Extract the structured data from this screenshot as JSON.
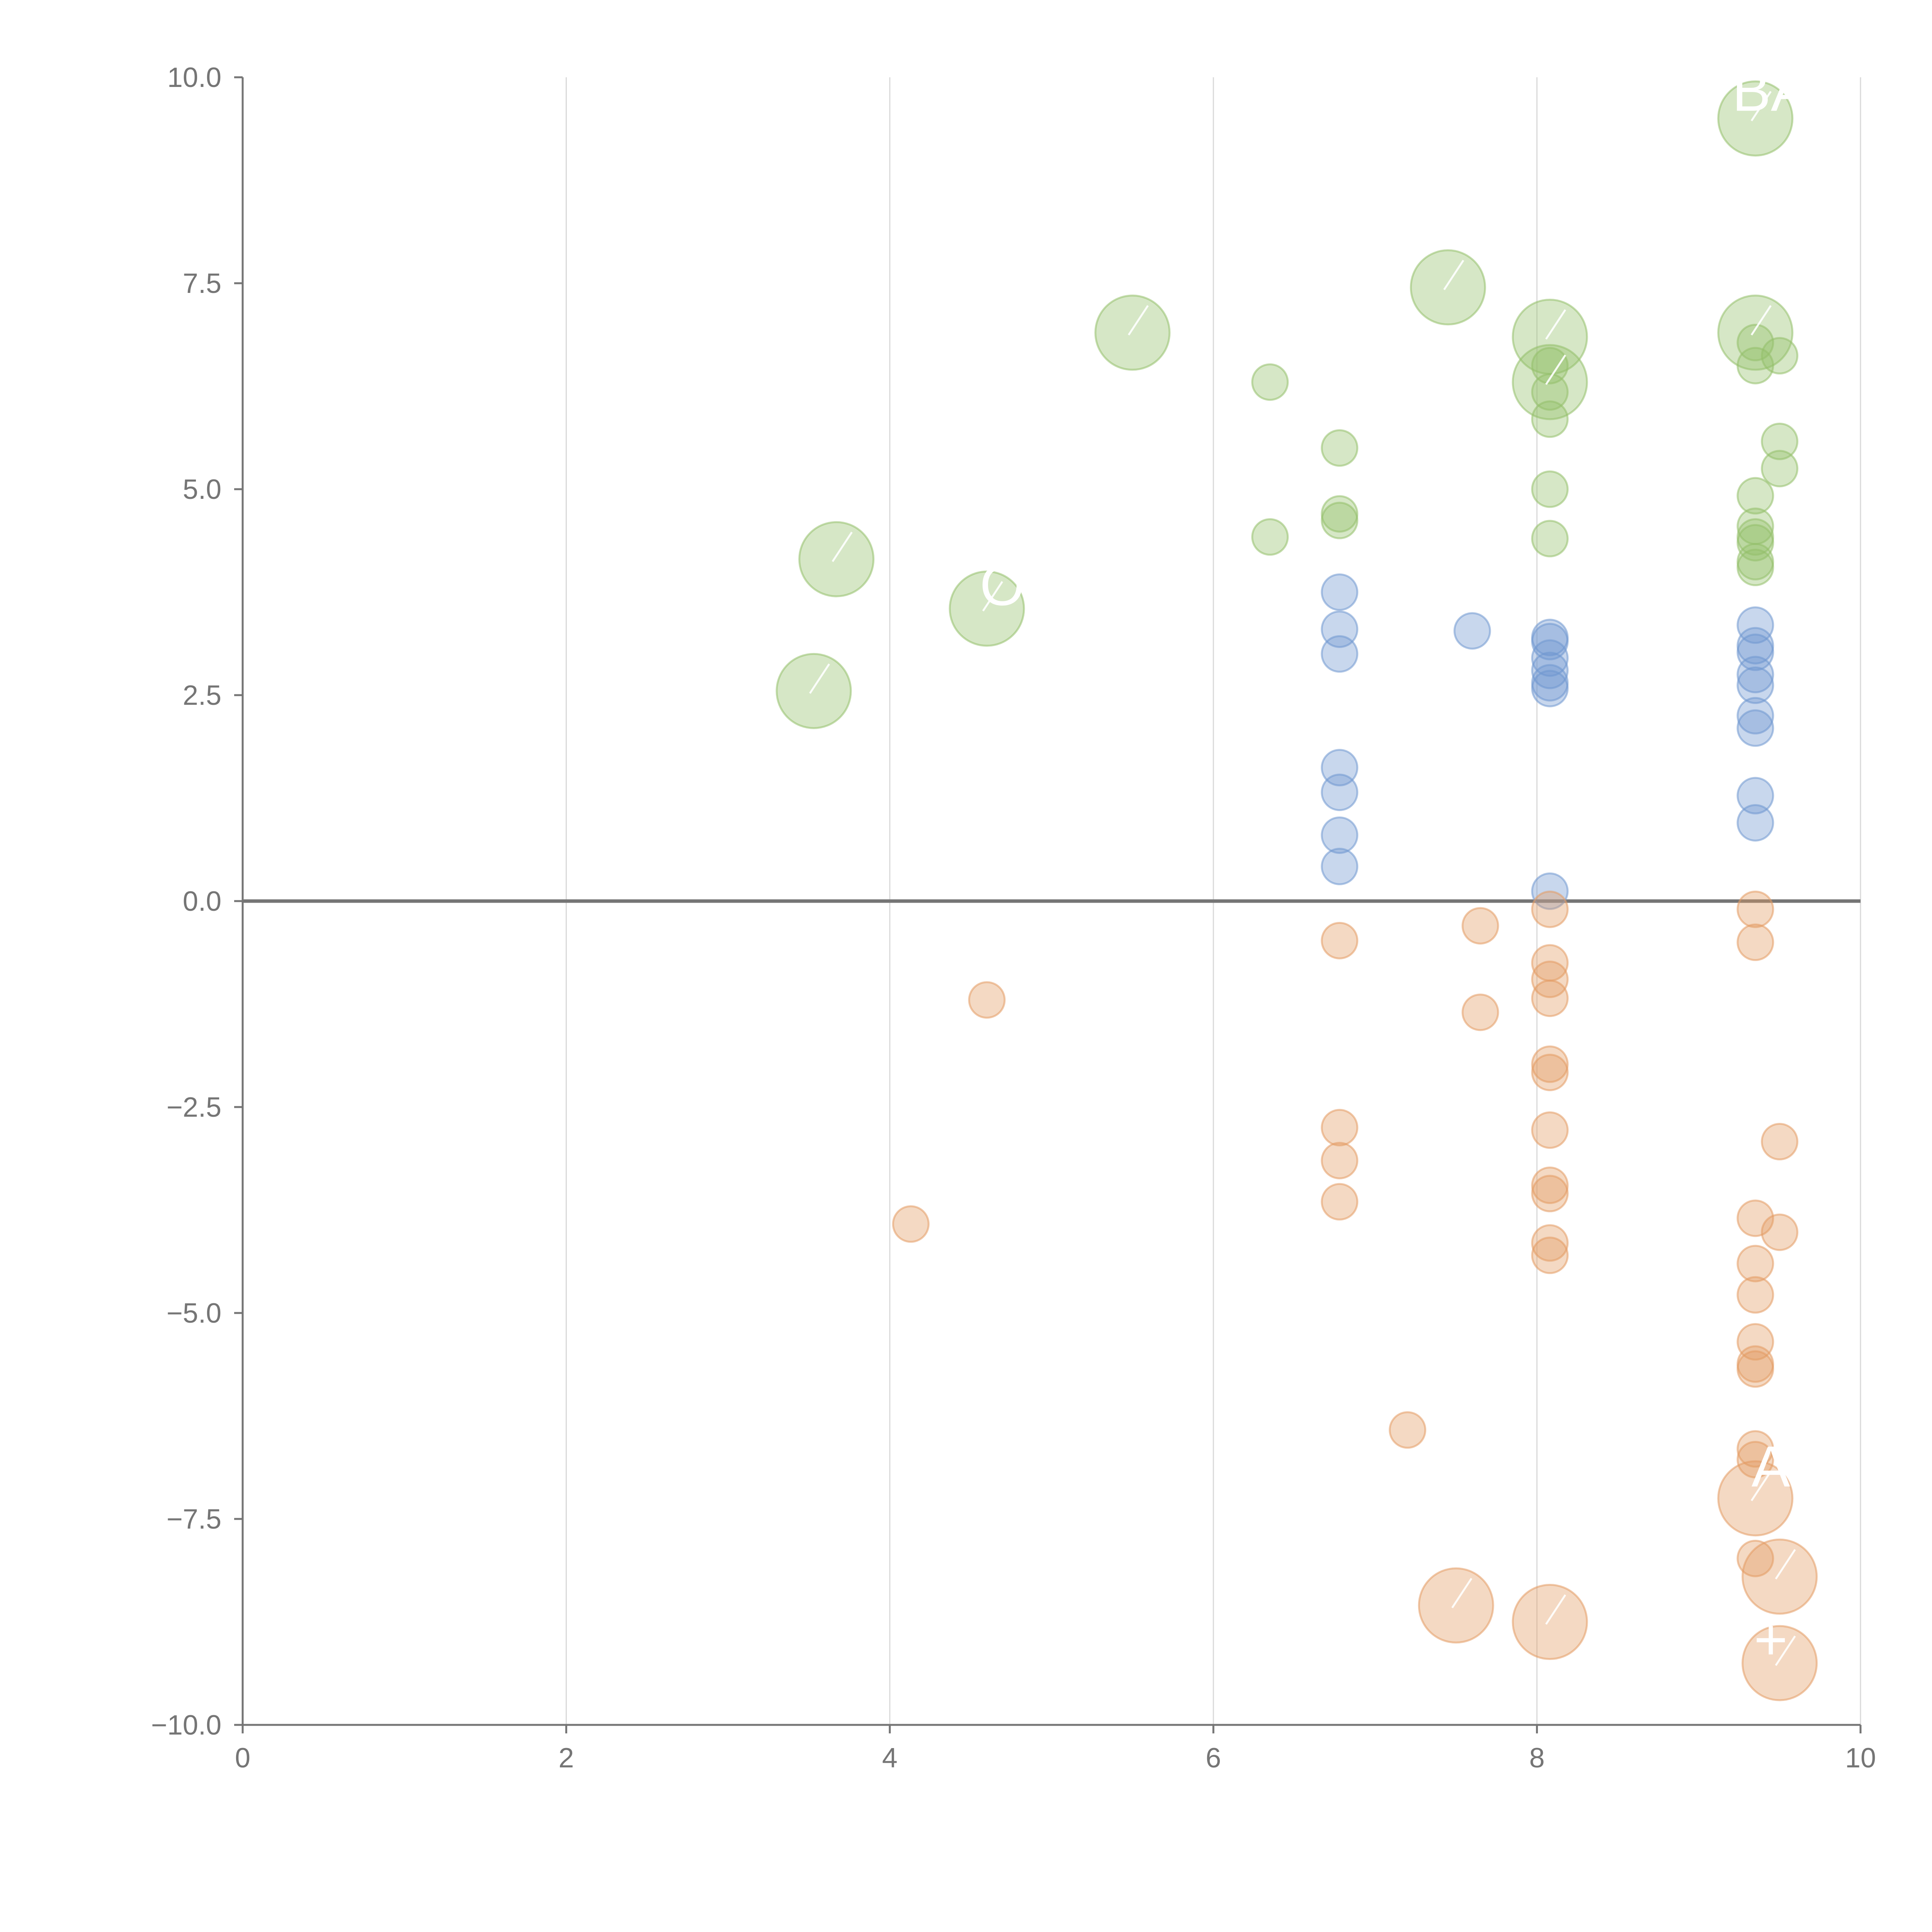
{
  "chart_data": {
    "type": "scatter",
    "title": "",
    "xlabel": "",
    "ylabel": "",
    "xlim": [
      0,
      10
    ],
    "ylim": [
      -10,
      10
    ],
    "grid": "vertical",
    "x_ticks": [
      "0",
      "2",
      "4",
      "6",
      "8",
      "10"
    ],
    "x_tick_values": [
      0,
      2,
      4,
      6,
      8,
      10
    ],
    "y_ticks": [
      "10.0",
      "7.5",
      "5.0",
      "2.5",
      "0.0",
      "−2.5",
      "−5.0",
      "−7.5",
      "−10.0"
    ],
    "y_tick_values": [
      10,
      7.5,
      5,
      2.5,
      0,
      -2.5,
      -5,
      -7.5,
      -10
    ],
    "reference_line_y": 0,
    "annotations": [
      {
        "text": "BA",
        "x": 9.35,
        "y": 9.5
      },
      {
        "text": "A",
        "x": 9.35,
        "y": -7.2
      },
      {
        "text": "+",
        "x": 9.35,
        "y": -9.3
      },
      {
        "text": "O",
        "x": 4.6,
        "y": 3.5
      }
    ],
    "series": [
      {
        "name": "green",
        "color": "#93c06a",
        "points": [
          {
            "x": 9.35,
            "y": 9.5,
            "size": 3
          },
          {
            "x": 7.45,
            "y": 7.45,
            "size": 3
          },
          {
            "x": 8.08,
            "y": 6.85,
            "size": 3
          },
          {
            "x": 9.35,
            "y": 6.9,
            "size": 3
          },
          {
            "x": 5.5,
            "y": 6.9,
            "size": 3
          },
          {
            "x": 8.08,
            "y": 6.3,
            "size": 3
          },
          {
            "x": 3.67,
            "y": 4.15,
            "size": 3
          },
          {
            "x": 4.6,
            "y": 3.55,
            "size": 3
          },
          {
            "x": 3.53,
            "y": 2.55,
            "size": 3
          },
          {
            "x": 6.35,
            "y": 6.3,
            "size": 1
          },
          {
            "x": 6.78,
            "y": 5.5,
            "size": 1
          },
          {
            "x": 6.78,
            "y": 4.7,
            "size": 1
          },
          {
            "x": 6.78,
            "y": 4.62,
            "size": 1
          },
          {
            "x": 6.35,
            "y": 4.42,
            "size": 1
          },
          {
            "x": 8.08,
            "y": 6.5,
            "size": 1
          },
          {
            "x": 8.08,
            "y": 6.18,
            "size": 1
          },
          {
            "x": 8.08,
            "y": 5.85,
            "size": 1
          },
          {
            "x": 8.08,
            "y": 5.0,
            "size": 1
          },
          {
            "x": 8.08,
            "y": 4.4,
            "size": 1
          },
          {
            "x": 9.35,
            "y": 6.78,
            "size": 1
          },
          {
            "x": 9.35,
            "y": 6.5,
            "size": 1
          },
          {
            "x": 9.5,
            "y": 6.62,
            "size": 1
          },
          {
            "x": 9.5,
            "y": 5.58,
            "size": 1
          },
          {
            "x": 9.5,
            "y": 5.25,
            "size": 1
          },
          {
            "x": 9.35,
            "y": 4.92,
            "size": 1
          },
          {
            "x": 9.35,
            "y": 4.55,
            "size": 1
          },
          {
            "x": 9.35,
            "y": 4.42,
            "size": 1
          },
          {
            "x": 9.35,
            "y": 4.35,
            "size": 1
          },
          {
            "x": 9.35,
            "y": 4.12,
            "size": 1
          },
          {
            "x": 9.35,
            "y": 4.05,
            "size": 1
          }
        ]
      },
      {
        "name": "blue",
        "color": "#6f97cf",
        "points": [
          {
            "x": 6.78,
            "y": 3.75,
            "size": 1
          },
          {
            "x": 6.78,
            "y": 3.3,
            "size": 1
          },
          {
            "x": 6.78,
            "y": 3.0,
            "size": 1
          },
          {
            "x": 6.78,
            "y": 1.62,
            "size": 1
          },
          {
            "x": 6.78,
            "y": 1.32,
            "size": 1
          },
          {
            "x": 6.78,
            "y": 0.8,
            "size": 1
          },
          {
            "x": 6.78,
            "y": 0.42,
            "size": 1
          },
          {
            "x": 7.6,
            "y": 3.28,
            "size": 1
          },
          {
            "x": 8.08,
            "y": 3.2,
            "size": 1
          },
          {
            "x": 8.08,
            "y": 3.15,
            "size": 1
          },
          {
            "x": 8.08,
            "y": 2.95,
            "size": 1
          },
          {
            "x": 8.08,
            "y": 2.8,
            "size": 1
          },
          {
            "x": 8.08,
            "y": 2.65,
            "size": 1
          },
          {
            "x": 8.08,
            "y": 2.58,
            "size": 1
          },
          {
            "x": 8.08,
            "y": 0.12,
            "size": 1
          },
          {
            "x": 9.35,
            "y": 3.35,
            "size": 1
          },
          {
            "x": 9.35,
            "y": 3.1,
            "size": 1
          },
          {
            "x": 9.35,
            "y": 3.02,
            "size": 1
          },
          {
            "x": 9.35,
            "y": 2.75,
            "size": 1
          },
          {
            "x": 9.35,
            "y": 2.62,
            "size": 1
          },
          {
            "x": 9.35,
            "y": 2.25,
            "size": 1
          },
          {
            "x": 9.35,
            "y": 2.1,
            "size": 1
          },
          {
            "x": 9.35,
            "y": 1.28,
            "size": 1
          },
          {
            "x": 9.35,
            "y": 0.95,
            "size": 1
          }
        ]
      },
      {
        "name": "orange",
        "color": "#e39a62",
        "points": [
          {
            "x": 6.78,
            "y": -0.48,
            "size": 1
          },
          {
            "x": 6.78,
            "y": -2.75,
            "size": 1
          },
          {
            "x": 6.78,
            "y": -3.15,
            "size": 1
          },
          {
            "x": 6.78,
            "y": -3.65,
            "size": 1
          },
          {
            "x": 4.6,
            "y": -1.2,
            "size": 1
          },
          {
            "x": 4.13,
            "y": -3.92,
            "size": 1
          },
          {
            "x": 7.65,
            "y": -0.3,
            "size": 1
          },
          {
            "x": 7.65,
            "y": -1.35,
            "size": 1
          },
          {
            "x": 7.2,
            "y": -6.42,
            "size": 1
          },
          {
            "x": 8.08,
            "y": -0.1,
            "size": 1
          },
          {
            "x": 8.08,
            "y": -0.75,
            "size": 1
          },
          {
            "x": 8.08,
            "y": -0.95,
            "size": 1
          },
          {
            "x": 8.08,
            "y": -1.18,
            "size": 1
          },
          {
            "x": 8.08,
            "y": -1.98,
            "size": 1
          },
          {
            "x": 8.08,
            "y": -2.08,
            "size": 1
          },
          {
            "x": 8.08,
            "y": -2.78,
            "size": 1
          },
          {
            "x": 8.08,
            "y": -3.45,
            "size": 1
          },
          {
            "x": 8.08,
            "y": -3.55,
            "size": 1
          },
          {
            "x": 8.08,
            "y": -4.15,
            "size": 1
          },
          {
            "x": 8.08,
            "y": -4.3,
            "size": 1
          },
          {
            "x": 9.35,
            "y": -0.1,
            "size": 1
          },
          {
            "x": 9.35,
            "y": -0.5,
            "size": 1
          },
          {
            "x": 9.5,
            "y": -2.92,
            "size": 1
          },
          {
            "x": 9.35,
            "y": -3.85,
            "size": 1
          },
          {
            "x": 9.5,
            "y": -4.02,
            "size": 1
          },
          {
            "x": 9.35,
            "y": -4.4,
            "size": 1
          },
          {
            "x": 9.35,
            "y": -4.78,
            "size": 1
          },
          {
            "x": 9.35,
            "y": -5.35,
            "size": 1
          },
          {
            "x": 9.35,
            "y": -5.62,
            "size": 1
          },
          {
            "x": 9.35,
            "y": -5.68,
            "size": 1
          },
          {
            "x": 9.35,
            "y": -6.65,
            "size": 1
          },
          {
            "x": 9.35,
            "y": -6.78,
            "size": 1
          },
          {
            "x": 9.35,
            "y": -7.98,
            "size": 1
          },
          {
            "x": 9.35,
            "y": -7.25,
            "size": 3
          },
          {
            "x": 9.5,
            "y": -8.2,
            "size": 3
          },
          {
            "x": 7.5,
            "y": -8.55,
            "size": 3
          },
          {
            "x": 8.08,
            "y": -8.75,
            "size": 3
          },
          {
            "x": 9.5,
            "y": -9.25,
            "size": 3
          }
        ]
      }
    ]
  }
}
